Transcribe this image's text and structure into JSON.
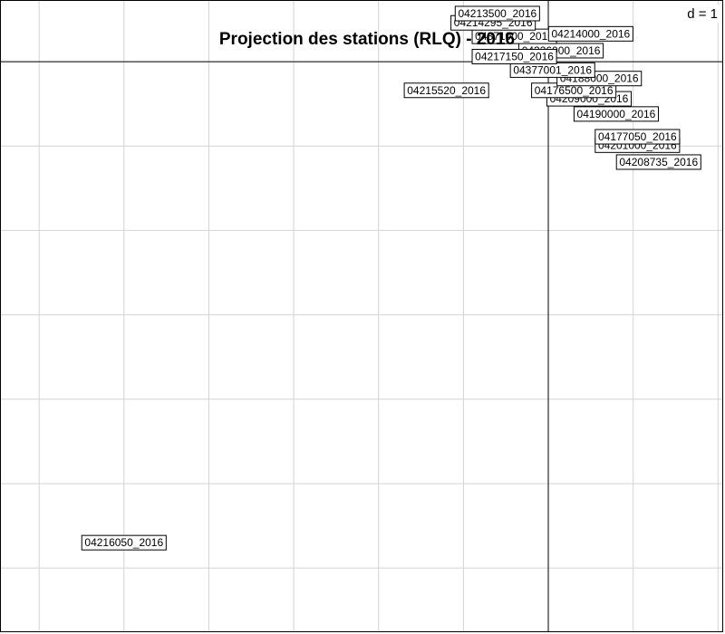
{
  "chart_data": {
    "type": "scatter",
    "title": "Projection des stations (RLQ) - 2016",
    "scale_label": "d = 1",
    "grid_step": 1,
    "grid": true,
    "xlim": [
      -6.45,
      2.05
    ],
    "ylim": [
      -6.75,
      0.72
    ],
    "points": [
      {
        "label": "04216050_2016",
        "x": -5.0,
        "y": -5.7
      },
      {
        "label": "04215520_2016",
        "x": -1.2,
        "y": -0.34
      },
      {
        "label": "04208735_2016",
        "x": 1.3,
        "y": -1.19
      },
      {
        "label": "04201000_2016",
        "x": 1.05,
        "y": -0.99
      },
      {
        "label": "04177050_2016",
        "x": 1.05,
        "y": -0.89
      },
      {
        "label": "04190000_2016",
        "x": 0.8,
        "y": -0.62
      },
      {
        "label": "04209000_2016",
        "x": 0.48,
        "y": -0.44
      },
      {
        "label": "04176500_2016",
        "x": 0.3,
        "y": -0.34
      },
      {
        "label": "04188000_2016",
        "x": 0.6,
        "y": -0.2
      },
      {
        "label": "04377001_2016",
        "x": 0.05,
        "y": -0.1
      },
      {
        "label": "04336000_2016",
        "x": 0.15,
        "y": 0.13
      },
      {
        "label": "04217150_2016",
        "x": -0.4,
        "y": 0.06
      },
      {
        "label": "04371000_2016",
        "x": -0.4,
        "y": 0.3
      },
      {
        "label": "04214295_2016",
        "x": -0.65,
        "y": 0.46
      },
      {
        "label": "04214000_2016",
        "x": 0.5,
        "y": 0.33
      },
      {
        "label": "04213500_2016",
        "x": -0.6,
        "y": 0.57
      }
    ]
  }
}
